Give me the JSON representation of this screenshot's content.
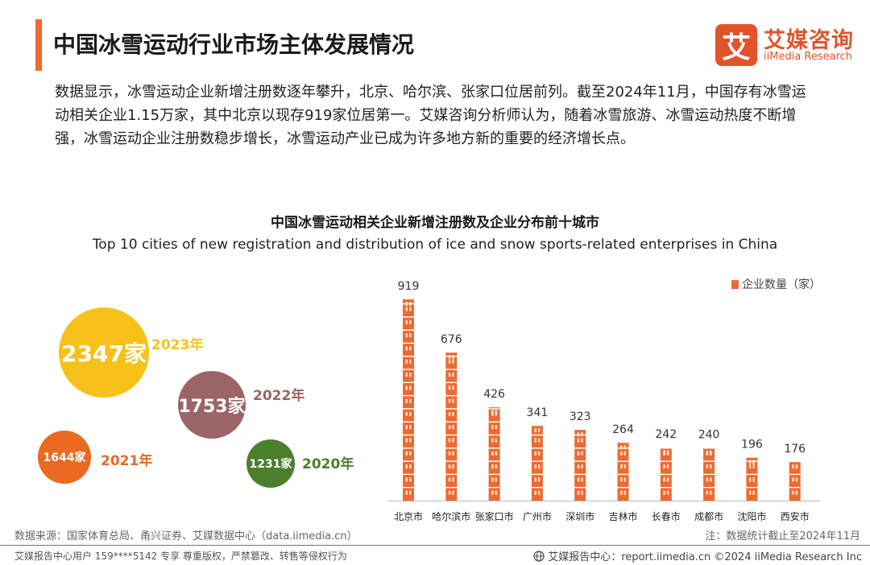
{
  "header": {
    "title": "中国冰雪运动行业市场主体发展情况",
    "logo_mark": "艾",
    "logo_cn": "艾媒咨询",
    "logo_en": "iiMedia Research"
  },
  "intro": "数据显示，冰雪运动企业新增注册数逐年攀升，北京、哈尔滨、张家口位居前列。截至2024年11月，中国存有冰雪运动相关企业1.15万家，其中北京以现存919家位居第一。艾媒咨询分析师认为，随着冰雪旅游、冰雪运动热度不断增强，冰雪运动企业注册数稳步增长，冰雪运动产业已成为许多地方新的重要的经济增长点。",
  "chart_data": [
    {
      "type": "bubble",
      "title": "中国冰雪运动相关企业新增注册数及企业分布前十城市",
      "subtitle": "Top 10 cities of new registration and distribution of ice and snow sports-related enterprises in China",
      "unit": "家",
      "points": [
        {
          "year": "2023年",
          "value": 2347,
          "label": "2347家",
          "color": "#f6c21a"
        },
        {
          "year": "2022年",
          "value": 1753,
          "label": "1753家",
          "color": "#9b6467"
        },
        {
          "year": "2021年",
          "value": 1644,
          "label": "1644家",
          "color": "#ea6a22"
        },
        {
          "year": "2020年",
          "value": 1231,
          "label": "1231家",
          "color": "#4b7f2c"
        }
      ]
    },
    {
      "type": "bar",
      "legend": "企业数量（家）",
      "categories": [
        "北京市",
        "哈尔滨市",
        "张家口市",
        "广州市",
        "深圳市",
        "吉林市",
        "长春市",
        "成都市",
        "沈阳市",
        "西安市"
      ],
      "values": [
        919,
        676,
        426,
        341,
        323,
        264,
        242,
        240,
        196,
        176
      ],
      "ylim": [
        0,
        919
      ],
      "color": "#ee6a31"
    }
  ],
  "footer": {
    "source": "数据来源：国家体育总局、甬兴证券、艾媒数据中心（data.iimedia.cn）",
    "note": "注：数据统计截止至2024年11月",
    "left": "艾媒报告中心用户 159****5142 专享 尊重版权，严禁篡改、转售等侵权行为",
    "right": "艾媒报告中心：report.iimedia.cn ©2024 iiMedia Research Inc"
  }
}
